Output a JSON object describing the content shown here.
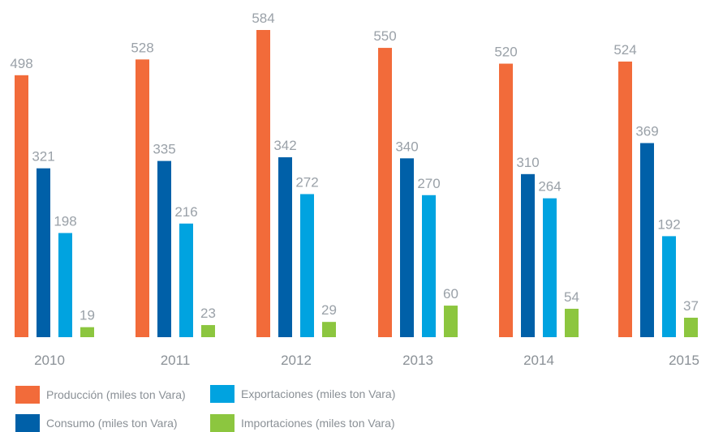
{
  "chart_data": {
    "type": "bar",
    "categories": [
      "2010",
      "2011",
      "2012",
      "2013",
      "2014",
      "2015"
    ],
    "series": [
      {
        "name": "Producción (miles ton Vara)",
        "color": "#f26b3a",
        "values": [
          498,
          528,
          584,
          550,
          520,
          524
        ]
      },
      {
        "name": "Consumo (miles ton Vara)",
        "color": "#0060a8",
        "values": [
          321,
          335,
          342,
          340,
          310,
          369
        ]
      },
      {
        "name": "Exportaciones (miles ton Vara)",
        "color": "#00a3e0",
        "values": [
          198,
          216,
          272,
          270,
          264,
          192
        ]
      },
      {
        "name": "Importaciones (miles ton Vara)",
        "color": "#8cc63f",
        "values": [
          19,
          23,
          29,
          60,
          54,
          37
        ]
      }
    ],
    "title": "",
    "xlabel": "",
    "ylabel": "",
    "ylim": [
      0,
      584
    ],
    "grid": false,
    "legend_position": "bottom-left",
    "data_labels": true
  }
}
